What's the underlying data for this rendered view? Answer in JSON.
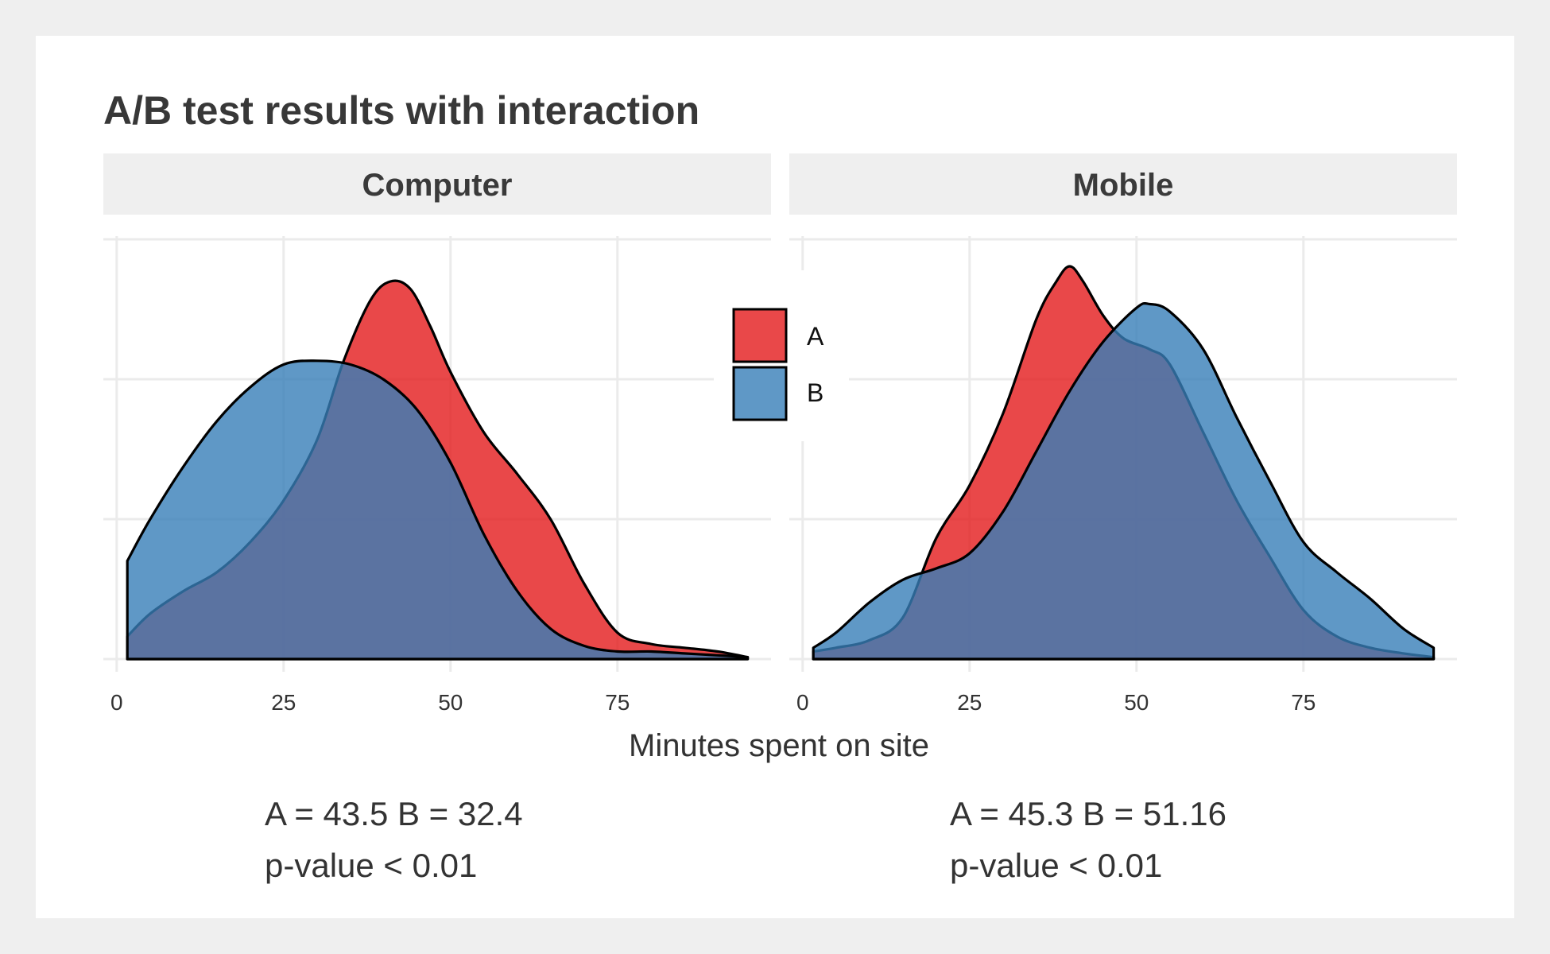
{
  "chart_data": {
    "type": "area",
    "subtype": "density",
    "title": "A/B test results with interaction",
    "xlabel": "Minutes spent on site",
    "ylabel": "",
    "xlim": [
      -2,
      98
    ],
    "x_ticks": [
      0,
      25,
      50,
      75
    ],
    "y_ticks_visible": false,
    "grid": true,
    "legend": {
      "placement": "center-between-panels",
      "entries": [
        {
          "label": "A",
          "color": "#E41A1C"
        },
        {
          "label": "B",
          "color": "#377EB8"
        }
      ]
    },
    "fill_alpha": 0.8,
    "overlap_color": "#645F8F",
    "panels": [
      {
        "strip_label": "Computer",
        "series": [
          {
            "name": "A",
            "x": [
              1.6,
              5,
              10,
              15,
              20,
              25,
              30,
              34,
              38,
              41,
              44,
              47,
              50,
              55,
              60,
              65,
              70,
              75,
              80,
              85,
              90,
              94.5
            ],
            "y": [
              0.06,
              0.12,
              0.18,
              0.23,
              0.31,
              0.42,
              0.58,
              0.79,
              0.95,
              1.0,
              0.98,
              0.88,
              0.76,
              0.6,
              0.49,
              0.37,
              0.2,
              0.07,
              0.04,
              0.03,
              0.02,
              0.005
            ]
          },
          {
            "name": "B",
            "x": [
              1.6,
              5,
              10,
              15,
              20,
              25,
              30,
              35,
              40,
              45,
              50,
              55,
              60,
              65,
              70,
              75,
              80,
              85,
              90,
              94.5
            ],
            "y": [
              0.26,
              0.37,
              0.51,
              0.63,
              0.72,
              0.78,
              0.79,
              0.78,
              0.74,
              0.66,
              0.52,
              0.33,
              0.18,
              0.08,
              0.035,
              0.02,
              0.02,
              0.015,
              0.01,
              0.005
            ]
          }
        ],
        "caption_lines": [
          "A = 43.5  B = 32.4",
          "p-value < 0.01"
        ]
      },
      {
        "strip_label": "Mobile",
        "series": [
          {
            "name": "A",
            "x": [
              1.6,
              5,
              10,
              15,
              20,
              25,
              30,
              35,
              38,
              40,
              42,
              45,
              48,
              52,
              55,
              60,
              65,
              70,
              75,
              80,
              85,
              90,
              94.5
            ],
            "y": [
              0.02,
              0.03,
              0.05,
              0.11,
              0.32,
              0.46,
              0.65,
              0.9,
              1.0,
              1.04,
              1.0,
              0.91,
              0.85,
              0.82,
              0.78,
              0.6,
              0.42,
              0.27,
              0.13,
              0.06,
              0.03,
              0.015,
              0.005
            ]
          },
          {
            "name": "B",
            "x": [
              1.6,
              5,
              10,
              15,
              20,
              25,
              30,
              35,
              40,
              45,
              50,
              52,
              55,
              60,
              65,
              70,
              75,
              80,
              85,
              90,
              94.5
            ],
            "y": [
              0.03,
              0.07,
              0.15,
              0.21,
              0.24,
              0.28,
              0.39,
              0.55,
              0.71,
              0.84,
              0.93,
              0.94,
              0.92,
              0.82,
              0.64,
              0.47,
              0.31,
              0.23,
              0.16,
              0.08,
              0.03
            ]
          }
        ],
        "caption_lines": [
          "A = 45.3  B = 51.16",
          "p-value < 0.01"
        ]
      }
    ]
  }
}
